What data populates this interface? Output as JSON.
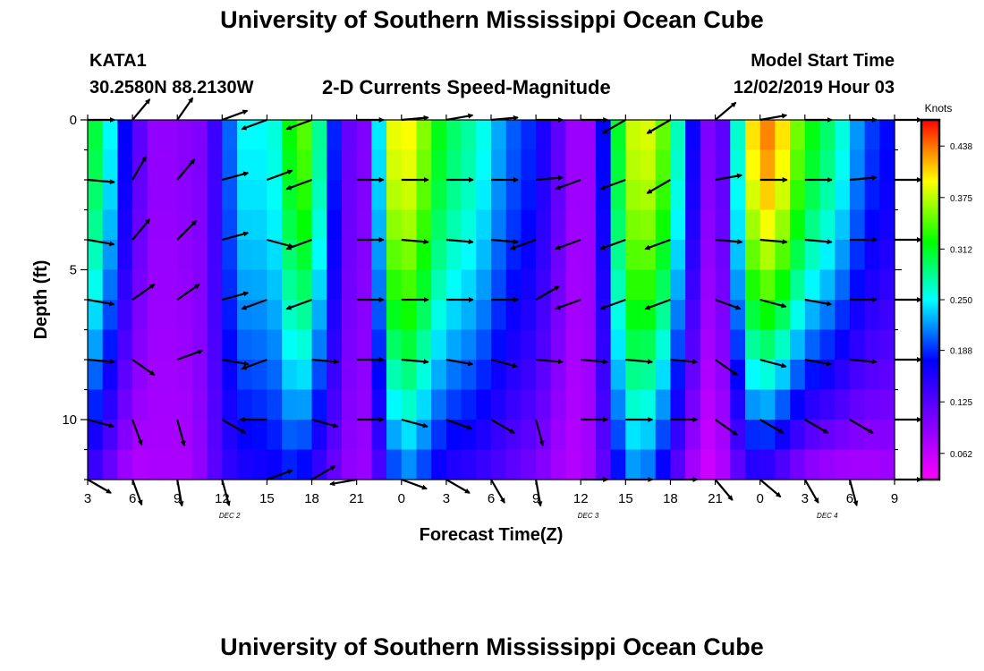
{
  "page": {
    "title_top": "University of Southern Mississippi Ocean Cube",
    "title_bottom": "University of Southern Mississippi Ocean Cube",
    "station": "KATA1",
    "coords": "30.2580N 88.2130W",
    "plot_title": "2-D Currents Speed-Magnitude",
    "model_start_label": "Model Start Time",
    "model_start_value": "12/02/2019 Hour 03"
  },
  "chart_data": {
    "type": "heatmap",
    "title": "2-D Currents Speed-Magnitude",
    "xlabel": "Forecast Time(Z)",
    "ylabel": "Depth (ft)",
    "x_tick_labels": [
      "3",
      "6",
      "9",
      "12",
      "15",
      "18",
      "21",
      "0",
      "3",
      "6",
      "9",
      "12",
      "15",
      "18",
      "21",
      "0",
      "3",
      "6",
      "9"
    ],
    "x_range_hours": [
      0,
      54
    ],
    "day_labels": [
      {
        "label": "DEC  2",
        "hour": 9.5
      },
      {
        "label": "DEC  3",
        "hour": 33.5
      },
      {
        "label": "DEC  4",
        "hour": 49.5
      }
    ],
    "y_range": [
      0,
      12
    ],
    "y_tick_labels": [
      "0",
      "5",
      "10"
    ],
    "y_tick_values": [
      0,
      5,
      10
    ],
    "colorbar": {
      "unit": "Knots",
      "range": [
        0.03,
        0.47
      ],
      "tick_values": [
        0.438,
        0.375,
        0.312,
        0.25,
        0.188,
        0.125,
        0.062
      ],
      "tick_labels": [
        "0.438",
        "0.375",
        "0.312",
        "0.250",
        "0.188",
        "0.125",
        "0.062"
      ]
    },
    "grid_rows": 12,
    "grid_cols": 54,
    "column_profile": {
      "hours": [
        0,
        1,
        2,
        3,
        4,
        5,
        6,
        7,
        8,
        9,
        10,
        11,
        12,
        13,
        14,
        15,
        16,
        17,
        18,
        19,
        20,
        21,
        22,
        23,
        24,
        26,
        28,
        30,
        32,
        33,
        34,
        35,
        36,
        37,
        38,
        39,
        40,
        41,
        42,
        43,
        44,
        45,
        46,
        47,
        48,
        50,
        52,
        54
      ],
      "surface_speed": [
        0.32,
        0.29,
        0.21,
        0.14,
        0.1,
        0.08,
        0.1,
        0.09,
        0.11,
        0.17,
        0.24,
        0.26,
        0.24,
        0.28,
        0.36,
        0.33,
        0.23,
        0.14,
        0.09,
        0.11,
        0.38,
        0.4,
        0.39,
        0.33,
        0.3,
        0.27,
        0.21,
        0.18,
        0.1,
        0.07,
        0.1,
        0.25,
        0.37,
        0.39,
        0.38,
        0.32,
        0.22,
        0.12,
        0.08,
        0.16,
        0.37,
        0.44,
        0.43,
        0.38,
        0.33,
        0.28,
        0.2,
        0.17
      ],
      "bottom_speed": [
        0.14,
        0.12,
        0.09,
        0.07,
        0.07,
        0.08,
        0.07,
        0.08,
        0.1,
        0.14,
        0.15,
        0.16,
        0.16,
        0.17,
        0.18,
        0.15,
        0.12,
        0.1,
        0.08,
        0.09,
        0.16,
        0.21,
        0.2,
        0.17,
        0.15,
        0.14,
        0.12,
        0.1,
        0.07,
        0.07,
        0.09,
        0.14,
        0.2,
        0.22,
        0.18,
        0.14,
        0.09,
        0.06,
        0.05,
        0.09,
        0.13,
        0.14,
        0.12,
        0.1,
        0.08,
        0.07,
        0.07,
        0.08
      ]
    },
    "vectors": {
      "hours": [
        0,
        3,
        6,
        9,
        12,
        15,
        18,
        21,
        24,
        27,
        30,
        33,
        36,
        39,
        42,
        45,
        48,
        51,
        54
      ],
      "depths": [
        0,
        2,
        4,
        6,
        8,
        10,
        12
      ],
      "angles_deg": [
        [
          0,
          50,
          55,
          20,
          200,
          200,
          0,
          5,
          10,
          5,
          0,
          0,
          210,
          210,
          40,
          10,
          0,
          0,
          0
        ],
        [
          -5,
          60,
          50,
          15,
          20,
          200,
          0,
          0,
          0,
          0,
          5,
          200,
          200,
          210,
          10,
          0,
          0,
          5,
          0
        ],
        [
          -10,
          50,
          45,
          15,
          -15,
          200,
          0,
          -5,
          -5,
          -5,
          200,
          200,
          200,
          200,
          -5,
          -5,
          -5,
          0,
          0
        ],
        [
          -10,
          35,
          35,
          15,
          200,
          200,
          0,
          0,
          0,
          0,
          30,
          200,
          200,
          200,
          -20,
          -15,
          -10,
          0,
          0
        ],
        [
          -5,
          -35,
          20,
          -10,
          200,
          -5,
          0,
          -5,
          -10,
          -15,
          -5,
          -5,
          -5,
          -5,
          -35,
          -15,
          -10,
          -5,
          0
        ],
        [
          -15,
          -70,
          -75,
          -30,
          180,
          -15,
          0,
          -15,
          -20,
          -30,
          -75,
          0,
          0,
          0,
          -35,
          -30,
          -30,
          -30,
          0
        ],
        [
          -30,
          -70,
          -80,
          -75,
          20,
          30,
          190,
          -20,
          -30,
          -60,
          -80,
          0,
          0,
          0,
          -50,
          -40,
          -60,
          -75,
          0
        ]
      ]
    }
  }
}
